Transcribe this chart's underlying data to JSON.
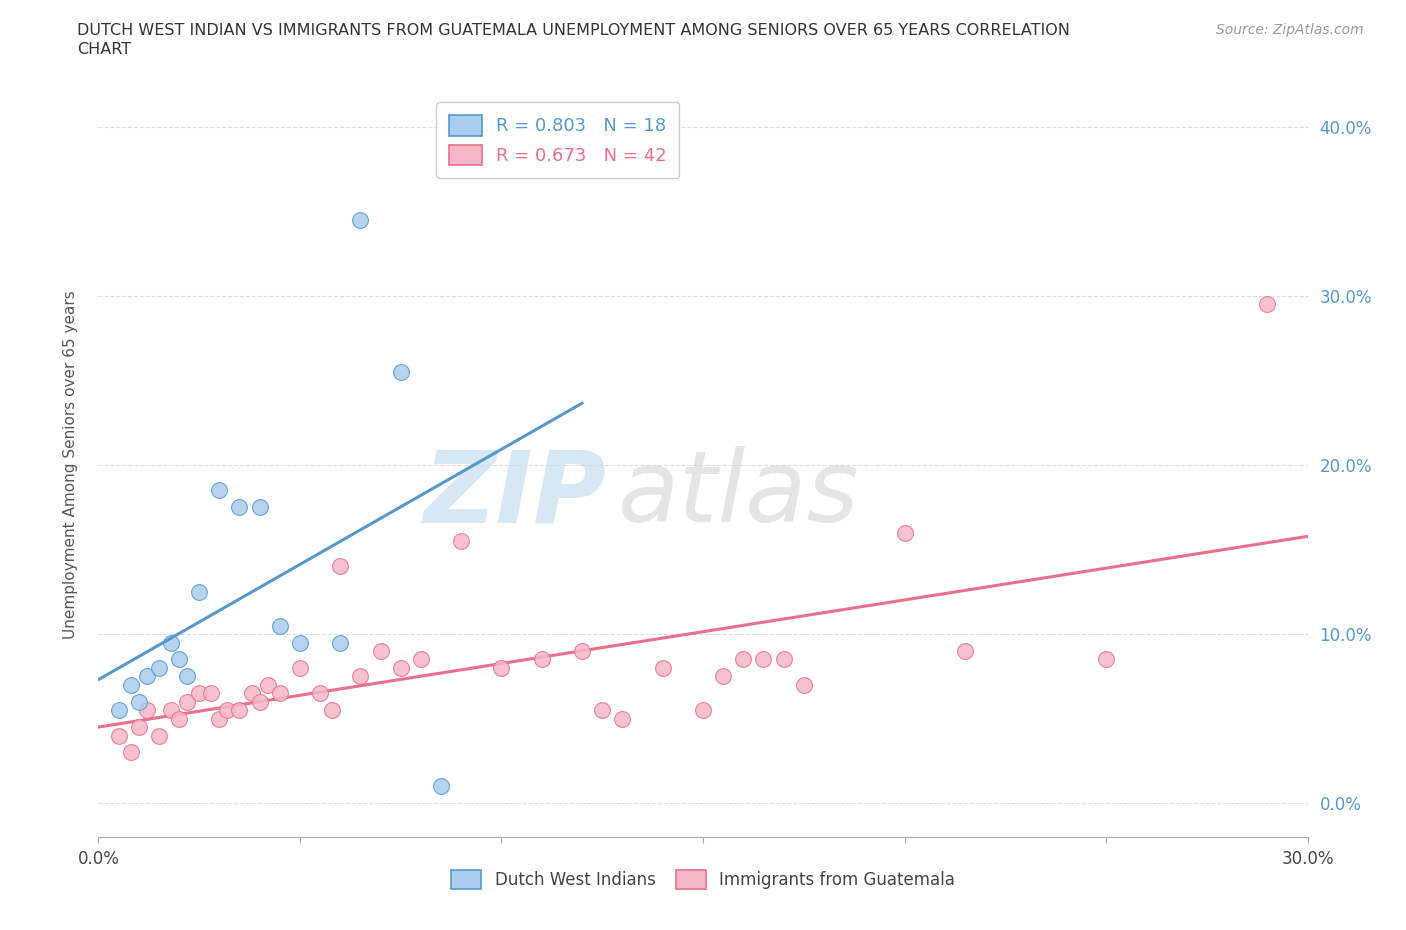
{
  "title_line1": "DUTCH WEST INDIAN VS IMMIGRANTS FROM GUATEMALA UNEMPLOYMENT AMONG SENIORS OVER 65 YEARS CORRELATION",
  "title_line2": "CHART",
  "source": "Source: ZipAtlas.com",
  "ylabel": "Unemployment Among Seniors over 65 years",
  "xlim": [
    0.0,
    0.3
  ],
  "ylim": [
    -0.02,
    0.42
  ],
  "xticks": [
    0.0,
    0.05,
    0.1,
    0.15,
    0.2,
    0.25,
    0.3
  ],
  "xtick_labels": [
    "0.0%",
    "",
    "",
    "",
    "",
    "",
    "30.0%"
  ],
  "ytick_vals": [
    0.0,
    0.1,
    0.2,
    0.3,
    0.4
  ],
  "ytick_labels": [
    "0.0%",
    "10.0%",
    "20.0%",
    "30.0%",
    "40.0%"
  ],
  "blue_R": 0.803,
  "blue_N": 18,
  "pink_R": 0.673,
  "pink_N": 42,
  "blue_scatter_x": [
    0.005,
    0.008,
    0.01,
    0.012,
    0.015,
    0.018,
    0.02,
    0.022,
    0.025,
    0.03,
    0.035,
    0.04,
    0.045,
    0.05,
    0.06,
    0.065,
    0.075,
    0.085
  ],
  "blue_scatter_y": [
    0.055,
    0.07,
    0.06,
    0.075,
    0.08,
    0.095,
    0.085,
    0.075,
    0.125,
    0.185,
    0.175,
    0.175,
    0.105,
    0.095,
    0.095,
    0.345,
    0.255,
    0.01
  ],
  "pink_scatter_x": [
    0.005,
    0.008,
    0.01,
    0.012,
    0.015,
    0.018,
    0.02,
    0.022,
    0.025,
    0.028,
    0.03,
    0.032,
    0.035,
    0.038,
    0.04,
    0.042,
    0.045,
    0.05,
    0.055,
    0.058,
    0.06,
    0.065,
    0.07,
    0.075,
    0.08,
    0.09,
    0.1,
    0.11,
    0.12,
    0.125,
    0.13,
    0.14,
    0.15,
    0.155,
    0.16,
    0.165,
    0.17,
    0.175,
    0.2,
    0.215,
    0.25,
    0.29
  ],
  "pink_scatter_y": [
    0.04,
    0.03,
    0.045,
    0.055,
    0.04,
    0.055,
    0.05,
    0.06,
    0.065,
    0.065,
    0.05,
    0.055,
    0.055,
    0.065,
    0.06,
    0.07,
    0.065,
    0.08,
    0.065,
    0.055,
    0.14,
    0.075,
    0.09,
    0.08,
    0.085,
    0.155,
    0.08,
    0.085,
    0.09,
    0.055,
    0.05,
    0.08,
    0.055,
    0.075,
    0.085,
    0.085,
    0.085,
    0.07,
    0.16,
    0.09,
    0.085,
    0.295
  ],
  "blue_color": "#aaccee",
  "pink_color": "#f5b8c8",
  "blue_line_color": "#5599cc",
  "pink_line_color": "#e8708a",
  "background_color": "#ffffff",
  "grid_color": "#dddddd"
}
